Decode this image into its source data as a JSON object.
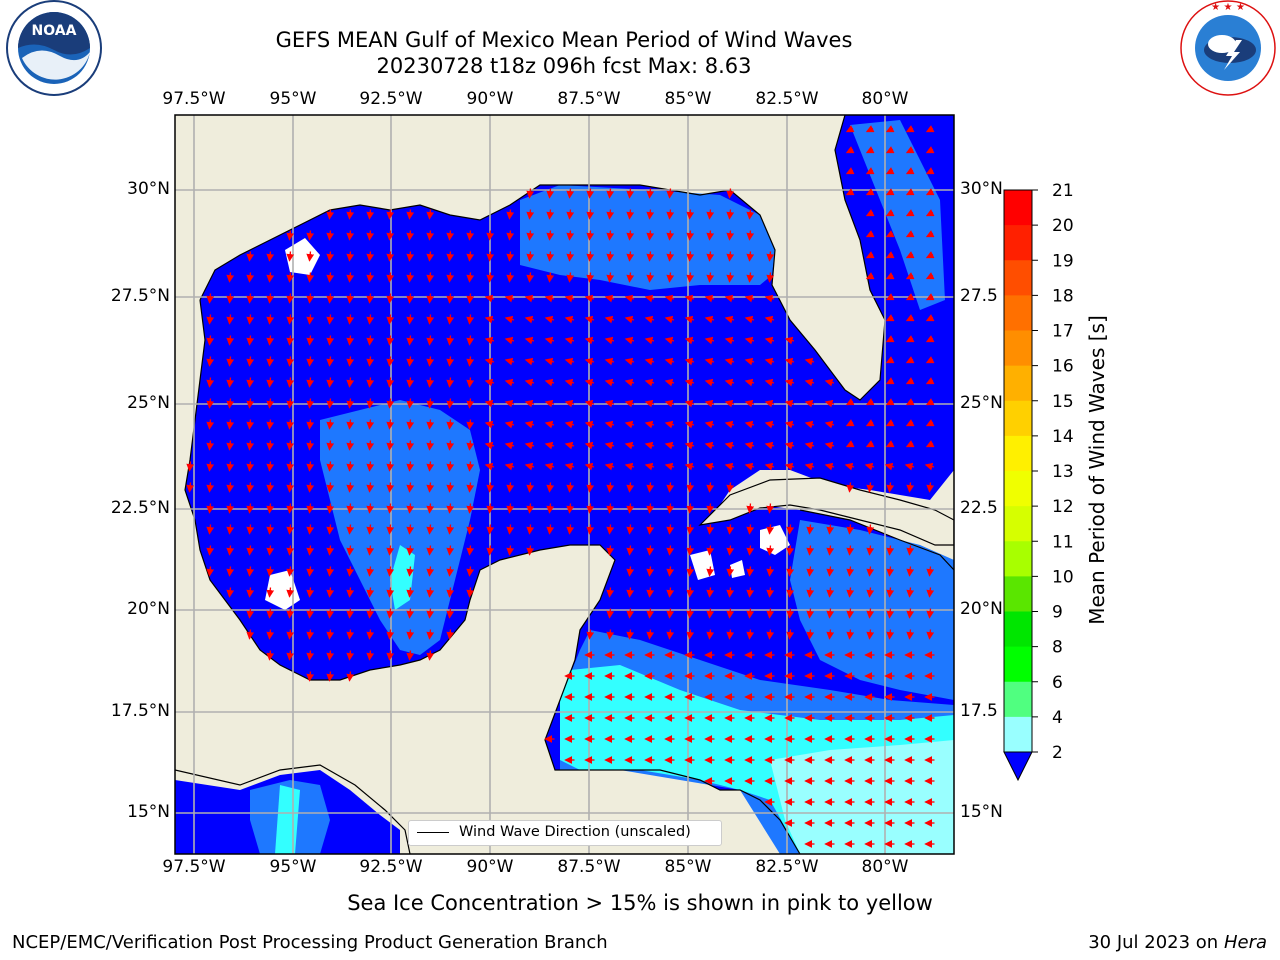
{
  "header": {
    "title_line1": "GEFS MEAN Gulf of Mexico Mean Period of Wind Waves",
    "title_line2": "20230728 t18z 096h fcst   Max: 8.63"
  },
  "logos": {
    "noaa": {
      "text": "NOAA",
      "ring_text": "NATIONAL OCEANIC AND ATMOSPHERIC ADMINISTRATION · U.S. DEPARTMENT OF COMMERCE"
    },
    "nws": {
      "ring_text": "NATIONAL WEATHER SERVICE"
    }
  },
  "map": {
    "lon_labels": [
      "97.5°W",
      "95°W",
      "92.5°W",
      "90°W",
      "87.5°W",
      "85°W",
      "82.5°W",
      "80°W"
    ],
    "lat_labels_left": [
      "30°N",
      "27.5°N",
      "25°N",
      "22.5°N",
      "20°N",
      "17.5°N",
      "15°N"
    ],
    "lat_labels_right": [
      "30°N",
      "27.5",
      "25°N",
      "22.5",
      "20°N",
      "17.5",
      "15°N"
    ],
    "legend": "Wind Wave Direction (unscaled)",
    "colors": {
      "land": "#efeddc",
      "deep": "#0000ff",
      "mid": "#1e78ff",
      "light": "#33ffff",
      "pale": "#99ffff",
      "arrow": "#ff0000",
      "grid": "#b0b0b0"
    }
  },
  "colorbar": {
    "title": "Mean Period of Wind Waves [s]",
    "ticks": [
      "21",
      "20",
      "19",
      "18",
      "17",
      "16",
      "15",
      "14",
      "13",
      "12",
      "11",
      "10",
      "9",
      "8",
      "6",
      "4",
      "2"
    ],
    "colors": [
      "#ff0000",
      "#ff2000",
      "#ff4e00",
      "#ff7000",
      "#ff8e00",
      "#ffb000",
      "#ffd000",
      "#fff000",
      "#f0ff00",
      "#d6ff00",
      "#a8ff00",
      "#5ae600",
      "#00e600",
      "#00ff00",
      "#50ff80",
      "#99ffff",
      "#66ffff",
      "#33ffff",
      "#00ffff",
      "#00d0ff",
      "#1e78ff",
      "#0000ff"
    ]
  },
  "subtitle": "Sea Ice Concentration > 15% is shown in pink to yellow",
  "footer": {
    "left": "NCEP/EMC/Verification Post Processing Product Generation Branch",
    "date": "30 Jul 2023 on ",
    "host": "Hera"
  }
}
